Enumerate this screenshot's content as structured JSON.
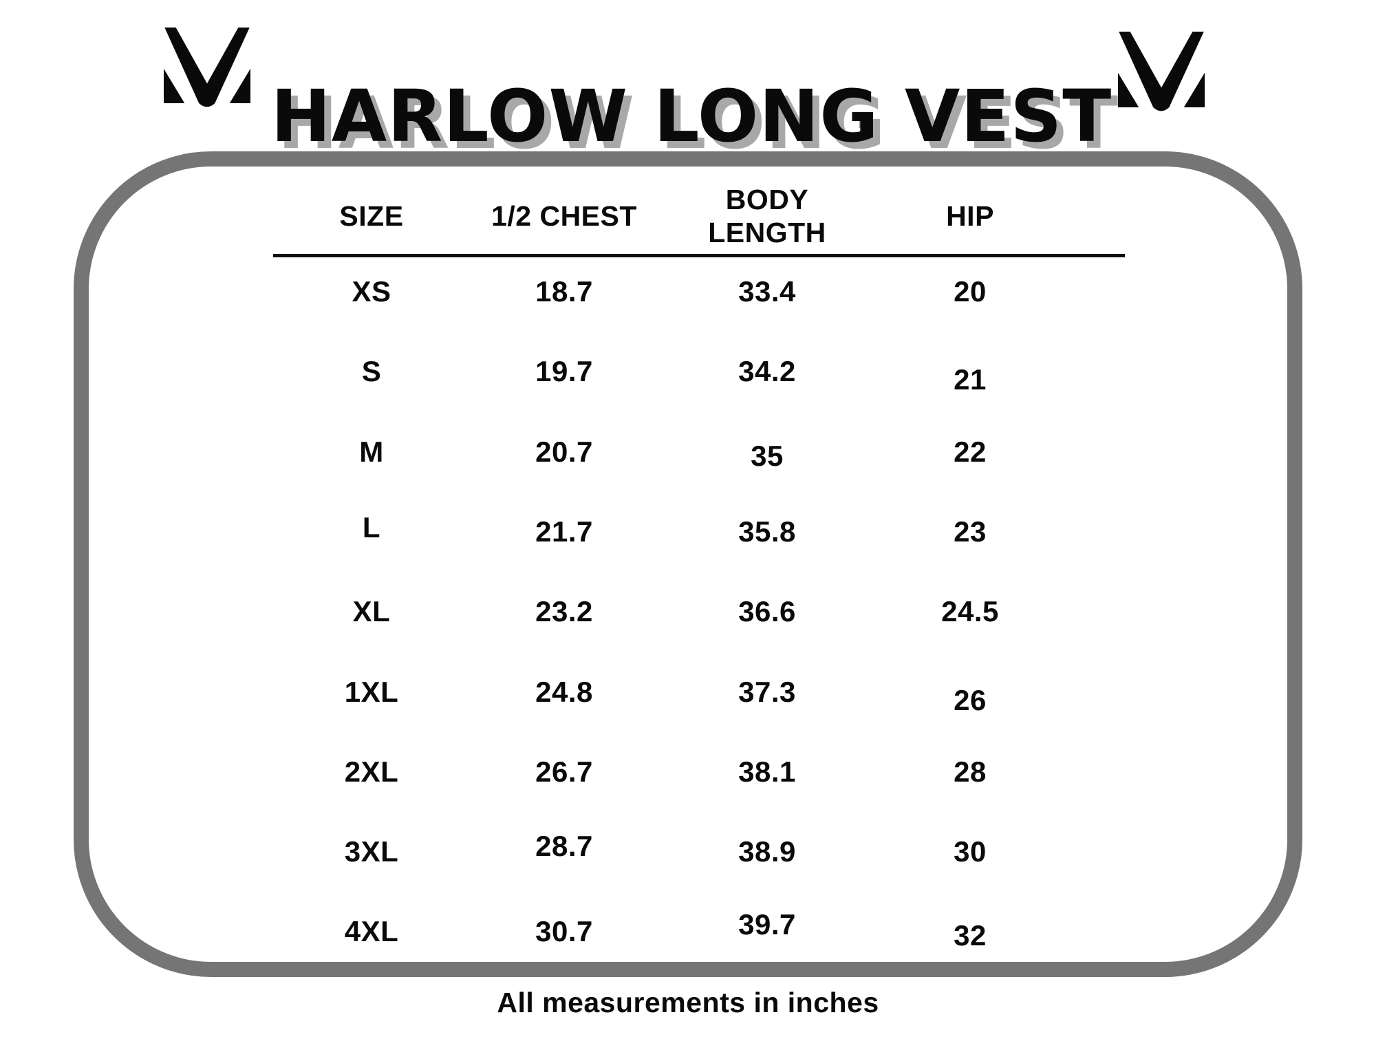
{
  "title": "HARLOW LONG VEST",
  "brand": {
    "logo_icon": "m-chevron-monogram"
  },
  "table": {
    "columns": [
      "SIZE",
      "1/2 CHEST",
      "BODY\nLENGTH",
      "HIP"
    ],
    "rows": [
      {
        "size": "XS",
        "chest": "18.7",
        "body_length": "33.4",
        "hip": "20"
      },
      {
        "size": "S",
        "chest": "19.7",
        "body_length": "34.2",
        "hip": "21"
      },
      {
        "size": "M",
        "chest": "20.7",
        "body_length": "35",
        "hip": "22"
      },
      {
        "size": "L",
        "chest": "21.7",
        "body_length": "35.8",
        "hip": "23"
      },
      {
        "size": "XL",
        "chest": "23.2",
        "body_length": "36.6",
        "hip": "24.5"
      },
      {
        "size": "1XL",
        "chest": "24.8",
        "body_length": "37.3",
        "hip": "26"
      },
      {
        "size": "2XL",
        "chest": "26.7",
        "body_length": "38.1",
        "hip": "28"
      },
      {
        "size": "3XL",
        "chest": "28.7",
        "body_length": "38.9",
        "hip": "30"
      },
      {
        "size": "4XL",
        "chest": "30.7",
        "body_length": "39.7",
        "hip": "32"
      }
    ]
  },
  "footnote": "All measurements in inches",
  "colors": {
    "text": "#0a0a0a",
    "border_gray": "#757575",
    "title_shadow": "#a8a8a8"
  },
  "chart_data": {
    "type": "table",
    "title": "HARLOW LONG VEST",
    "columns": [
      "SIZE",
      "1/2 CHEST",
      "BODY LENGTH",
      "HIP"
    ],
    "rows": [
      [
        "XS",
        18.7,
        33.4,
        20
      ],
      [
        "S",
        19.7,
        34.2,
        21
      ],
      [
        "M",
        20.7,
        35,
        22
      ],
      [
        "L",
        21.7,
        35.8,
        23
      ],
      [
        "XL",
        23.2,
        36.6,
        24.5
      ],
      [
        "1XL",
        24.8,
        37.3,
        26
      ],
      [
        "2XL",
        26.7,
        38.1,
        28
      ],
      [
        "3XL",
        28.7,
        38.9,
        30
      ],
      [
        "4XL",
        30.7,
        39.7,
        32
      ]
    ],
    "note": "All measurements in inches",
    "units": "inches"
  }
}
